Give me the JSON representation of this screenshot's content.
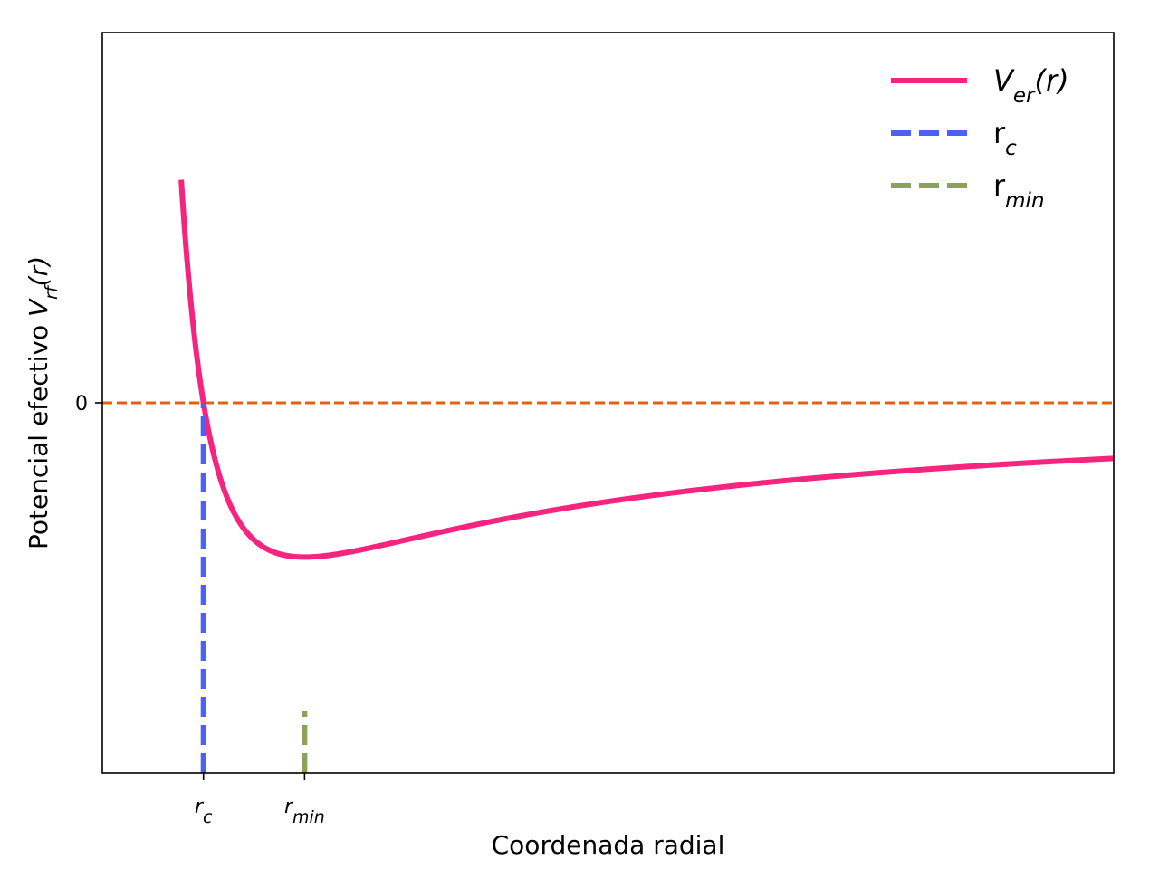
{
  "chart_data": {
    "type": "line",
    "xlabel": "Coordenada radial",
    "ylabel": {
      "prefix": "Potencial efectivo ",
      "symbol": "V",
      "subscript": "rf",
      "suffix": "(r)"
    },
    "xlim": [
      0,
      10
    ],
    "ylim": [
      -1.2,
      1.2
    ],
    "x_ticks": [
      {
        "x": 1,
        "symbol": "r",
        "subscript": "c"
      },
      {
        "x": 2,
        "symbol": "r",
        "subscript": "min"
      }
    ],
    "y_ticks": [
      {
        "y": 0,
        "label": "0"
      }
    ],
    "grid": false,
    "legend_position": "top-right",
    "series": [
      {
        "label_symbol": "V",
        "label_subscript": "er",
        "label_suffix": "(r)",
        "style": "solid",
        "color": "#f5247f",
        "function": "V(r) = 2*(1/r^2 - 1/r)",
        "note": "curve y values for plotted x range",
        "x": [
          0.8,
          0.85,
          0.9,
          0.95,
          1.0,
          1.1,
          1.2,
          1.3,
          1.4,
          1.5,
          1.6,
          1.8,
          2.0,
          2.5,
          3.0,
          4.0,
          5.0,
          6.0,
          7.0,
          8.0,
          9.0,
          10.0
        ],
        "y": [
          0.625,
          0.415,
          0.247,
          0.111,
          0.0,
          -0.165,
          -0.278,
          -0.355,
          -0.408,
          -0.444,
          -0.469,
          -0.494,
          -0.5,
          -0.48,
          -0.444,
          -0.375,
          -0.32,
          -0.278,
          -0.245,
          -0.219,
          -0.198,
          -0.18
        ]
      },
      {
        "label_symbol": "r",
        "label_subscript": "c",
        "label_suffix": "",
        "style": "dashed",
        "color": "#4a61f2",
        "x": [
          1,
          1
        ],
        "y": [
          -1.2,
          0
        ]
      },
      {
        "label_symbol": "r",
        "label_subscript": "min",
        "label_suffix": "",
        "style": "dashed",
        "color": "#8ba358",
        "x": [
          2,
          2
        ],
        "y": [
          -1.2,
          -1.0
        ]
      }
    ],
    "reference_lines": [
      {
        "y": 0,
        "style": "dashed",
        "color": "#e8600e"
      }
    ]
  }
}
